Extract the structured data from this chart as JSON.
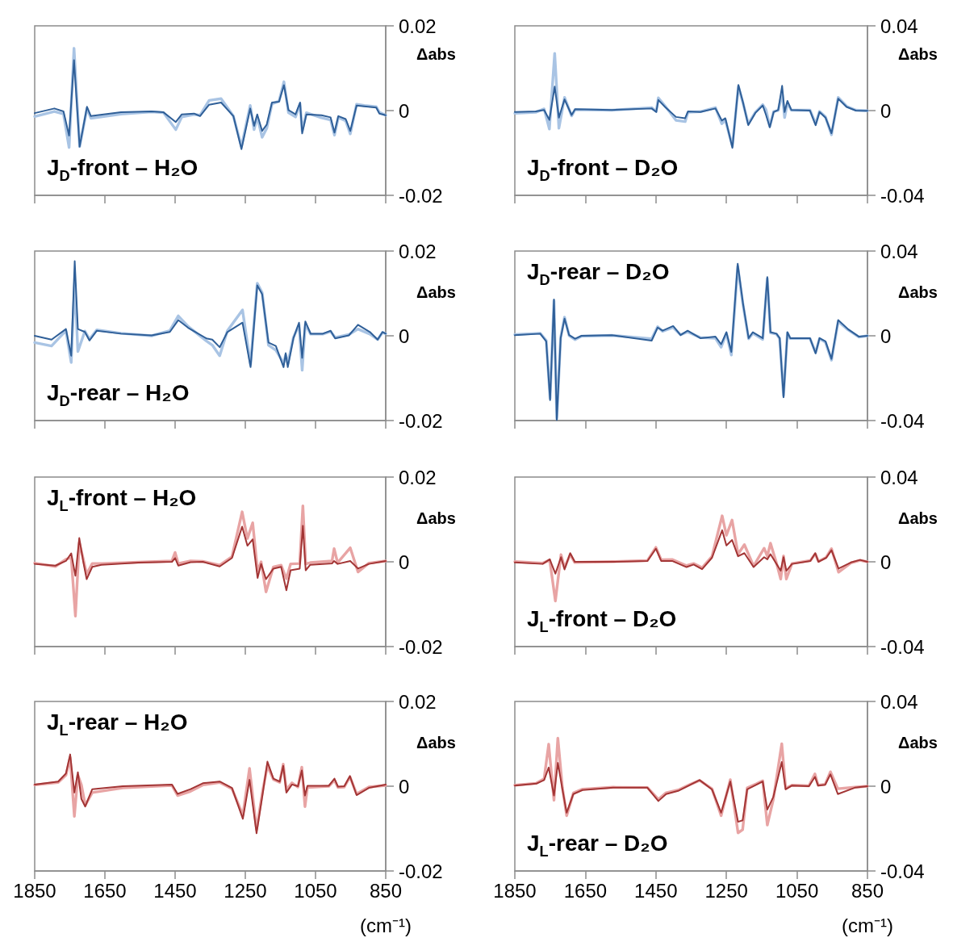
{
  "chart_data": [
    {
      "type": "line",
      "title": "J$_{D}$-front – H₂O",
      "ylabel": "Δabs",
      "xlim": [
        1850,
        850
      ],
      "xticks": [
        1850,
        1650,
        1450,
        1250,
        1050,
        850
      ],
      "ylim": [
        -0.02,
        0.02
      ],
      "yticks": [
        -0.02,
        0,
        0.02
      ],
      "tick_labels": "y",
      "grid": false,
      "marker": "none",
      "x": [
        1850,
        1794,
        1768,
        1752,
        1738,
        1722,
        1701,
        1690,
        1604,
        1517,
        1483,
        1448,
        1431,
        1396,
        1379,
        1353,
        1319,
        1284,
        1261,
        1236,
        1225,
        1216,
        1202,
        1189,
        1174,
        1154,
        1140,
        1127,
        1107,
        1094,
        1088,
        1076,
        1033,
        1007,
        996,
        985,
        964,
        951,
        933,
        911,
        877,
        868,
        850
      ],
      "series": [
        {
          "color": "#a9c4e4",
          "values": [
            -0.0014,
            -0.0002,
            -0.0008,
            -0.0087,
            0.0147,
            -0.0085,
            0.0005,
            -0.0018,
            -0.0008,
            -0.0003,
            -0.0005,
            -0.0045,
            -0.0015,
            -0.0009,
            -0.0011,
            0.0024,
            0.0028,
            -0.0013,
            -0.0085,
            0.0012,
            -0.0045,
            -0.0015,
            -0.0063,
            -0.0042,
            0.0016,
            0.0022,
            0.0068,
            -0.0005,
            -0.0015,
            0.0016,
            -0.0048,
            -0.0005,
            -0.0017,
            -0.0022,
            -0.0058,
            -0.0016,
            -0.0024,
            -0.0055,
            0.0015,
            0.0012,
            0.0009,
            -0.0004,
            -0.0011
          ]
        },
        {
          "color": "#2f5f98",
          "values": [
            -0.0006,
            0.0005,
            -0.0002,
            -0.0059,
            0.0119,
            -0.0085,
            0.0009,
            -0.0013,
            -0.0004,
            -0.0002,
            -0.0004,
            -0.0027,
            -0.0009,
            -0.0007,
            -0.0013,
            0.0014,
            0.0019,
            -0.0013,
            -0.0091,
            0.0005,
            -0.0036,
            -0.0009,
            -0.0048,
            -0.0033,
            0.0019,
            0.0021,
            0.006,
            0.0001,
            -0.0009,
            0.0019,
            -0.0054,
            -0.0009,
            -0.0011,
            -0.0016,
            -0.0052,
            -0.0013,
            -0.002,
            -0.0048,
            0.0012,
            0.001,
            0.0007,
            -0.0007,
            -0.0011
          ]
        }
      ]
    },
    {
      "type": "line",
      "title": "J$_{D}$-front – D₂O",
      "ylabel": "Δabs",
      "xlim": [
        1850,
        850
      ],
      "xticks": [
        1850,
        1650,
        1450,
        1250,
        1050,
        850
      ],
      "ylim": [
        -0.04,
        0.04
      ],
      "yticks": [
        -0.04,
        0,
        0.04
      ],
      "tick_labels": "y",
      "grid": false,
      "marker": "none",
      "x": [
        1850,
        1791,
        1767,
        1752,
        1737,
        1725,
        1709,
        1689,
        1679,
        1575,
        1462,
        1449,
        1443,
        1424,
        1393,
        1367,
        1359,
        1324,
        1281,
        1263,
        1253,
        1233,
        1216,
        1203,
        1188,
        1168,
        1147,
        1138,
        1127,
        1116,
        1103,
        1092,
        1085,
        1077,
        1066,
        1013,
        997,
        986,
        969,
        952,
        933,
        909,
        883,
        850
      ],
      "series": [
        {
          "color": "#a9c4e4",
          "values": [
            -0.0013,
            -0.0008,
            0.0008,
            -0.0087,
            0.027,
            -0.0083,
            0.0062,
            -0.0025,
            0.0005,
            0.0002,
            0.0014,
            -0.0004,
            0.006,
            0.0022,
            -0.0046,
            -0.0052,
            -0.0008,
            -0.0005,
            0.0014,
            -0.0062,
            -0.0045,
            -0.0168,
            0.0114,
            0.0036,
            -0.0062,
            -0.0008,
            0.0028,
            0.0005,
            -0.0075,
            -0.0004,
            0.0001,
            0.0082,
            -0.0033,
            0.0036,
            0.0002,
            0.0002,
            -0.0062,
            -0.0004,
            -0.003,
            -0.0114,
            0.0062,
            0.002,
            0.0002,
            -0.0001
          ]
        },
        {
          "color": "#2f5f98",
          "values": [
            -0.0007,
            -0.0004,
            0.0003,
            -0.0044,
            0.0113,
            -0.0033,
            0.0053,
            -0.0021,
            0.0007,
            0.0003,
            0.001,
            -0.0007,
            0.005,
            0.0017,
            -0.003,
            -0.0036,
            -0.0004,
            -0.0007,
            0.001,
            -0.0047,
            -0.0036,
            -0.0176,
            0.0121,
            0.0039,
            -0.0069,
            -0.0011,
            0.0024,
            -0.0019,
            -0.0079,
            -0.0007,
            0.0003,
            0.0117,
            -0.0007,
            0.0046,
            0.0003,
            0,
            -0.0069,
            -0.0007,
            -0.0033,
            -0.0107,
            0.0056,
            0.0017,
            0,
            -0.0001
          ]
        }
      ]
    },
    {
      "type": "line",
      "title": "J$_{D}$-rear – H₂O",
      "ylabel": "Δabs",
      "xlim": [
        1850,
        850
      ],
      "xticks": [
        1850,
        1650,
        1450,
        1250,
        1050,
        850
      ],
      "ylim": [
        -0.02,
        0.02
      ],
      "yticks": [
        -0.02,
        0,
        0.02
      ],
      "tick_labels": "y",
      "grid": false,
      "marker": "none",
      "x": [
        1850,
        1802,
        1761,
        1746,
        1736,
        1727,
        1707,
        1694,
        1673,
        1604,
        1517,
        1465,
        1441,
        1413,
        1361,
        1344,
        1323,
        1301,
        1258,
        1235,
        1216,
        1202,
        1184,
        1163,
        1141,
        1135,
        1129,
        1113,
        1097,
        1088,
        1079,
        1064,
        1029,
        1007,
        994,
        955,
        929,
        895,
        873,
        859,
        850
      ],
      "series": [
        {
          "color": "#a9c4e4",
          "values": [
            -0.0016,
            -0.0024,
            0.0012,
            -0.0063,
            0.0125,
            -0.0037,
            0.0011,
            -0.0008,
            0.0014,
            0.0006,
            0,
            0.0012,
            0.0047,
            0.0022,
            -0.0012,
            -0.0022,
            -0.0047,
            0.0012,
            0.0061,
            -0.0068,
            0.0124,
            0.0102,
            -0.0022,
            -0.0034,
            -0.0064,
            -0.0045,
            -0.0066,
            -0.0004,
            0.0026,
            -0.0081,
            0.0028,
            0.0004,
            0.0004,
            0.001,
            -0.0004,
            0.0003,
            0.0016,
            0.0004,
            -0.0009,
            0.0008,
            0.0005
          ]
        },
        {
          "color": "#2f5f98",
          "values": [
            0,
            -0.0009,
            0.0016,
            -0.0047,
            0.0176,
            0.0016,
            0.0009,
            -0.0011,
            0.0012,
            0.0005,
            0.0001,
            0.0009,
            0.0037,
            0.0019,
            -0.0006,
            -0.0009,
            -0.0027,
            0.0009,
            0.0031,
            -0.0074,
            0.0119,
            0.0098,
            -0.0016,
            -0.0024,
            -0.0074,
            -0.0041,
            -0.0074,
            -0.0006,
            0.0031,
            -0.0052,
            0.0034,
            0.0005,
            0.0005,
            0.0012,
            -0.0006,
            0.0001,
            0.0026,
            0.0009,
            -0.0009,
            0.0009,
            0.0005
          ]
        }
      ]
    },
    {
      "type": "line",
      "title": "J$_{D}$-rear – D₂O",
      "ylabel": "Δabs",
      "xlim": [
        1850,
        850
      ],
      "xticks": [
        1850,
        1650,
        1450,
        1250,
        1050,
        850
      ],
      "ylim": [
        -0.04,
        0.04
      ],
      "yticks": [
        -0.04,
        0,
        0.04
      ],
      "tick_labels": "y",
      "grid": false,
      "marker": "none",
      "x": [
        1850,
        1778,
        1761,
        1750,
        1739,
        1731,
        1720,
        1709,
        1696,
        1679,
        1661,
        1575,
        1462,
        1445,
        1431,
        1401,
        1380,
        1360,
        1324,
        1281,
        1265,
        1250,
        1236,
        1218,
        1203,
        1187,
        1175,
        1147,
        1134,
        1125,
        1108,
        1099,
        1088,
        1077,
        1069,
        1013,
        997,
        986,
        969,
        952,
        933,
        905,
        874,
        850
      ],
      "series": [
        {
          "color": "#a9c4e4",
          "values": [
            0.0006,
            0.0012,
            -0.0022,
            -0.0295,
            0.0165,
            -0.039,
            -0.0008,
            0.0088,
            0.0001,
            -0.0018,
            -0.0002,
            0.0002,
            -0.0014,
            0.0043,
            0.0021,
            0.0039,
            0.0005,
            0.0018,
            -0.0008,
            -0.0012,
            -0.0054,
            0.0012,
            -0.0091,
            0.0328,
            0.0148,
            -0.0014,
            0.0012,
            -0.0017,
            0.027,
            0.0014,
            0.0008,
            -0.0013,
            -0.0282,
            0.0014,
            -0.0013,
            -0.0013,
            -0.0079,
            -0.0013,
            -0.0031,
            -0.0115,
            0.0068,
            0.0028,
            -0.0006,
            0
          ]
        },
        {
          "color": "#2f5f98",
          "values": [
            0.0003,
            0.001,
            -0.0026,
            -0.0304,
            0.0171,
            -0.0397,
            -0.0011,
            0.0081,
            0.0003,
            -0.0014,
            0,
            0.0003,
            -0.0023,
            0.0039,
            0.0024,
            0.0046,
            0.0003,
            0.0024,
            -0.0011,
            -0.0004,
            -0.004,
            0.0017,
            -0.0076,
            0.034,
            0.0153,
            -0.0011,
            0.0017,
            -0.0011,
            0.0277,
            0.0017,
            0.001,
            -0.0011,
            -0.029,
            0.0017,
            -0.0011,
            -0.0011,
            -0.0083,
            -0.0011,
            -0.0026,
            -0.0109,
            0.0074,
            0.0031,
            -0.0004,
            0
          ]
        }
      ]
    },
    {
      "type": "line",
      "title": "J$_{L}$-front – H₂O",
      "ylabel": "Δabs",
      "xlim": [
        1850,
        850
      ],
      "xticks": [
        1850,
        1650,
        1450,
        1250,
        1050,
        850
      ],
      "ylim": [
        -0.02,
        0.02
      ],
      "yticks": [
        -0.02,
        0,
        0.02
      ],
      "tick_labels": "y",
      "grid": false,
      "marker": "none",
      "x": [
        1850,
        1791,
        1761,
        1746,
        1734,
        1723,
        1712,
        1702,
        1686,
        1660,
        1555,
        1459,
        1450,
        1441,
        1406,
        1371,
        1323,
        1288,
        1259,
        1244,
        1229,
        1215,
        1205,
        1191,
        1170,
        1148,
        1133,
        1121,
        1095,
        1086,
        1078,
        1065,
        1003,
        997,
        987,
        951,
        929,
        898,
        850
      ],
      "series": [
        {
          "color": "#e8a4a4",
          "values": [
            -0.0003,
            -0.0011,
            0.0006,
            0.001,
            -0.0128,
            0.0045,
            0.0008,
            -0.0029,
            -0.0004,
            -0.0004,
            -0.0001,
            0.0002,
            0.0022,
            -0.0004,
            0.0002,
            0.0001,
            -0.0008,
            0.0012,
            0.0118,
            0.0055,
            0.0092,
            -0.0022,
            0,
            -0.0071,
            -0.0012,
            -0.0008,
            -0.004,
            -0.0005,
            -0.0004,
            0.0132,
            -0.0005,
            -0.0002,
            0.0002,
            0.0031,
            -0.0002,
            0.0033,
            -0.0024,
            -0.0003,
            0.0002
          ]
        },
        {
          "color": "#a33535",
          "values": [
            -0.0005,
            -0.0009,
            0.0002,
            0.002,
            -0.0033,
            0.0056,
            0.0002,
            -0.0041,
            -0.0012,
            -0.0007,
            -0.0002,
            0,
            0.0009,
            -0.0009,
            -0.0001,
            0,
            -0.0011,
            0.0009,
            0.0083,
            0.0038,
            0.0053,
            -0.0038,
            -0.0005,
            -0.0041,
            -0.0016,
            -0.0012,
            -0.0067,
            -0.002,
            -0.0016,
            0.0085,
            -0.002,
            -0.0007,
            -0.0004,
            0.0002,
            -0.0005,
            0.0002,
            -0.0016,
            -0.0005,
            0.0002
          ]
        }
      ]
    },
    {
      "type": "line",
      "title": "J$_{L}$-front – D₂O",
      "ylabel": "Δabs",
      "xlim": [
        1850,
        850
      ],
      "xticks": [
        1850,
        1650,
        1450,
        1250,
        1050,
        850
      ],
      "ylim": [
        -0.04,
        0.04
      ],
      "yticks": [
        -0.04,
        0,
        0.04
      ],
      "tick_labels": "y",
      "grid": false,
      "marker": "none",
      "x": [
        1850,
        1771,
        1751,
        1735,
        1719,
        1709,
        1693,
        1680,
        1571,
        1474,
        1450,
        1435,
        1404,
        1363,
        1343,
        1319,
        1291,
        1262,
        1250,
        1234,
        1217,
        1199,
        1173,
        1143,
        1134,
        1125,
        1108,
        1096,
        1088,
        1080,
        1064,
        1012,
        998,
        989,
        967,
        952,
        932,
        897,
        871,
        850
      ],
      "series": [
        {
          "color": "#e8a4a4",
          "values": [
            0.0001,
            -0.0006,
            0.0008,
            -0.0185,
            0.0034,
            -0.0028,
            0.0035,
            -0.0003,
            0.0001,
            0.0006,
            0.0068,
            0.001,
            0.0011,
            -0.0018,
            -0.0008,
            -0.0028,
            0.0025,
            0.0217,
            0.0125,
            0.0197,
            0.0036,
            0.0081,
            -0.002,
            0.0064,
            0.0026,
            0.0088,
            -0.0006,
            -0.0081,
            0.0028,
            -0.0081,
            -0.0008,
            0.0006,
            0.0038,
            0.0002,
            0.0021,
            0.0062,
            -0.0049,
            -0.0005,
            0.0007,
            0
          ]
        },
        {
          "color": "#a33535",
          "values": [
            -0.0003,
            -0.001,
            0.0012,
            -0.0056,
            0.0022,
            -0.0036,
            0.0041,
            0,
            0,
            0.0004,
            0.0062,
            0.0004,
            0.0004,
            -0.0025,
            -0.0013,
            -0.0035,
            0.0019,
            0.0149,
            0.0077,
            0.0103,
            0.0026,
            0.0041,
            -0.0025,
            0.0022,
            0.0012,
            0.0036,
            -0.001,
            -0.0042,
            0.0022,
            -0.0042,
            -0.001,
            0.0004,
            0.0041,
            0,
            0.0019,
            0.0055,
            -0.0032,
            -0.0003,
            0.0009,
            0
          ]
        }
      ]
    },
    {
      "type": "line",
      "title": "J$_{L}$-rear – H₂O",
      "ylabel": "Δabs",
      "xlabel": "(cm⁻¹)",
      "xlim": [
        1850,
        850
      ],
      "xticks": [
        1850,
        1650,
        1450,
        1250,
        1050,
        850
      ],
      "ylim": [
        -0.02,
        0.02
      ],
      "yticks": [
        -0.02,
        0,
        0.02
      ],
      "grid": false,
      "marker": "none",
      "x": [
        1850,
        1783,
        1761,
        1749,
        1737,
        1727,
        1717,
        1706,
        1686,
        1599,
        1459,
        1443,
        1406,
        1371,
        1323,
        1288,
        1257,
        1238,
        1218,
        1200,
        1187,
        1170,
        1152,
        1142,
        1133,
        1117,
        1100,
        1089,
        1080,
        1073,
        1012,
        996,
        986,
        968,
        952,
        933,
        898,
        850
      ],
      "series": [
        {
          "color": "#e8a4a4",
          "values": [
            0.0003,
            0.0009,
            0.0026,
            0.0068,
            -0.0071,
            0.0026,
            0.0003,
            -0.0045,
            -0.0015,
            -0.0004,
            0.0002,
            -0.0022,
            -0.0012,
            0.0003,
            0.0009,
            -0.0006,
            -0.0068,
            0.0042,
            -0.0102,
            -0.0008,
            0.0048,
            0.0016,
            0.0009,
            0.0052,
            -0.0008,
            0.0008,
            -0.0002,
            0.0045,
            -0.0048,
            -0.0003,
            0,
            0.0014,
            -0.0003,
            -0.0002,
            0.0022,
            -0.0018,
            -0.0002,
            0.0002
          ]
        },
        {
          "color": "#a33535",
          "values": [
            0.0004,
            0.0011,
            0.003,
            0.0075,
            -0.0015,
            0.0033,
            -0.003,
            -0.0048,
            -0.0007,
            0,
            0.0004,
            -0.0018,
            -0.0007,
            0.0007,
            0.0011,
            -0.0004,
            -0.0077,
            0.0015,
            -0.0111,
            -0.0015,
            0.0058,
            0.0018,
            0.0011,
            0.0048,
            -0.0015,
            0.0004,
            0,
            0.0037,
            -0.0022,
            0.0001,
            0.0001,
            0.0018,
            -0.0001,
            0,
            0.0024,
            -0.0021,
            -0.0004,
            0.0004
          ]
        }
      ]
    },
    {
      "type": "line",
      "title": "J$_{L}$-rear – D₂O",
      "ylabel": "Δabs",
      "xlabel": "(cm⁻¹)",
      "xlim": [
        1850,
        850
      ],
      "xticks": [
        1850,
        1650,
        1450,
        1250,
        1050,
        850
      ],
      "ylim": [
        -0.04,
        0.04
      ],
      "yticks": [
        -0.04,
        0,
        0.04
      ],
      "grid": false,
      "marker": "none",
      "x": [
        1850,
        1789,
        1767,
        1754,
        1739,
        1728,
        1715,
        1703,
        1684,
        1658,
        1571,
        1474,
        1443,
        1421,
        1387,
        1352,
        1326,
        1291,
        1265,
        1239,
        1217,
        1204,
        1191,
        1165,
        1147,
        1134,
        1117,
        1093,
        1082,
        1064,
        1016,
        999,
        990,
        970,
        955,
        934,
        886,
        850
      ],
      "series": [
        {
          "color": "#e8a4a4",
          "values": [
            0.0005,
            0.0014,
            0.0035,
            0.0198,
            -0.0066,
            0.0227,
            -0.0008,
            -0.0139,
            -0.0032,
            -0.0014,
            -0.0005,
            -0.0006,
            -0.0062,
            -0.0031,
            -0.0018,
            0.0009,
            0.0027,
            -0.0012,
            -0.0139,
            0.0031,
            -0.022,
            -0.0205,
            -0.0008,
            0.0011,
            0.0026,
            -0.0183,
            -0.0062,
            0.02,
            -0.001,
            0.0005,
            0.0002,
            0.0058,
            0.0005,
            0.0009,
            0.0068,
            -0.0012,
            -0.0005,
            0
          ]
        },
        {
          "color": "#a33535",
          "values": [
            0.0003,
            0.0012,
            0.0029,
            0.0088,
            -0.0044,
            0.011,
            -0.0015,
            -0.0125,
            -0.0037,
            -0.0018,
            -0.0007,
            -0.0007,
            -0.007,
            -0.0037,
            -0.0022,
            0.0007,
            0.0029,
            -0.0015,
            -0.0125,
            0.0022,
            -0.0168,
            -0.0161,
            -0.0015,
            0.0007,
            0.0022,
            -0.011,
            -0.0051,
            0.0114,
            -0.0015,
            0.0003,
            0,
            0.0044,
            0.0003,
            0.0007,
            0.0056,
            -0.0037,
            -0.0007,
            0
          ]
        }
      ]
    }
  ]
}
